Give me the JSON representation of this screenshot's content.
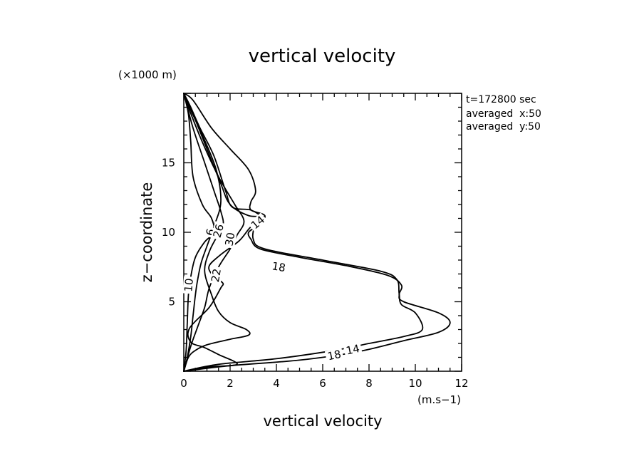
{
  "chart_data": {
    "type": "line",
    "title": "vertical velocity",
    "xlabel": "vertical velocity",
    "x_unit": "(m.s−1)",
    "ylabel": "z−coordinate",
    "y_unit": "(×1000 m)",
    "xlim": [
      0,
      12
    ],
    "ylim": [
      0,
      20
    ],
    "x_ticks": [
      "0",
      "2",
      "4",
      "6",
      "8",
      "10",
      "12"
    ],
    "y_ticks": [
      "5",
      "10",
      "15"
    ],
    "info_lines": [
      "t=172800 sec",
      "averaged  x:50",
      "averaged  y:50"
    ],
    "series": [
      {
        "name": "6",
        "points": [
          [
            0.0,
            0.0
          ],
          [
            0.15,
            1.0
          ],
          [
            0.3,
            2.5
          ],
          [
            0.4,
            4.0
          ],
          [
            0.5,
            5.5
          ],
          [
            0.6,
            6.6
          ],
          [
            0.75,
            7.8
          ],
          [
            1.0,
            9.0
          ],
          [
            1.3,
            10.4
          ],
          [
            1.6,
            12.2
          ],
          [
            1.4,
            14.5
          ],
          [
            0.8,
            17.0
          ],
          [
            0.3,
            18.8
          ],
          [
            0.0,
            20.0
          ]
        ]
      },
      {
        "name": "10",
        "points": [
          [
            0.0,
            0.0
          ],
          [
            0.1,
            1.5
          ],
          [
            0.15,
            3.5
          ],
          [
            0.2,
            5.5
          ],
          [
            0.3,
            6.8
          ],
          [
            0.5,
            8.2
          ],
          [
            0.9,
            9.3
          ],
          [
            1.3,
            10.0
          ],
          [
            1.2,
            11.0
          ],
          [
            0.8,
            12.0
          ],
          [
            0.4,
            14.0
          ],
          [
            0.3,
            16.5
          ],
          [
            0.2,
            18.5
          ],
          [
            0.0,
            20.0
          ]
        ]
      },
      {
        "name": "14",
        "points": [
          [
            0.0,
            0.0
          ],
          [
            1.5,
            0.5
          ],
          [
            4.0,
            0.9
          ],
          [
            6.5,
            1.5
          ],
          [
            8.0,
            2.0
          ],
          [
            9.5,
            2.5
          ],
          [
            10.3,
            3.0
          ],
          [
            10.0,
            4.2
          ],
          [
            9.4,
            4.8
          ],
          [
            9.3,
            5.6
          ],
          [
            9.2,
            6.6
          ],
          [
            8.5,
            7.2
          ],
          [
            6.0,
            8.0
          ],
          [
            3.5,
            8.8
          ],
          [
            3.0,
            9.5
          ],
          [
            3.1,
            10.6
          ],
          [
            3.4,
            11.0
          ],
          [
            2.9,
            11.6
          ],
          [
            2.1,
            11.8
          ],
          [
            1.8,
            13.0
          ],
          [
            1.3,
            15.5
          ],
          [
            0.7,
            17.5
          ],
          [
            0.3,
            19.0
          ],
          [
            0.0,
            20.0
          ]
        ]
      },
      {
        "name": "18",
        "points": [
          [
            0.0,
            0.0
          ],
          [
            2.0,
            0.4
          ],
          [
            5.0,
            0.8
          ],
          [
            7.5,
            1.4
          ],
          [
            9.5,
            2.2
          ],
          [
            11.0,
            2.8
          ],
          [
            11.5,
            3.5
          ],
          [
            11.0,
            4.2
          ],
          [
            9.5,
            5.0
          ],
          [
            9.3,
            5.5
          ],
          [
            9.4,
            6.2
          ],
          [
            8.8,
            6.9
          ],
          [
            7.0,
            7.6
          ],
          [
            5.0,
            8.2
          ],
          [
            3.3,
            8.8
          ],
          [
            2.9,
            9.5
          ],
          [
            2.8,
            10.0
          ],
          [
            3.2,
            10.5
          ],
          [
            3.5,
            11.2
          ],
          [
            2.9,
            11.6
          ],
          [
            2.9,
            12.2
          ],
          [
            3.1,
            13.0
          ],
          [
            2.8,
            14.5
          ],
          [
            2.0,
            16.0
          ],
          [
            1.2,
            17.5
          ],
          [
            0.4,
            19.5
          ],
          [
            0.0,
            20.0
          ]
        ]
      },
      {
        "name": "22",
        "points": [
          [
            0.0,
            0.0
          ],
          [
            1.0,
            0.3
          ],
          [
            2.3,
            0.5
          ],
          [
            1.5,
            1.2
          ],
          [
            0.9,
            1.7
          ],
          [
            0.3,
            2.1
          ],
          [
            0.25,
            3.1
          ],
          [
            1.1,
            4.6
          ],
          [
            1.6,
            6.0
          ],
          [
            1.7,
            6.3
          ],
          [
            1.5,
            6.6
          ],
          [
            1.2,
            7.0
          ],
          [
            1.1,
            7.6
          ],
          [
            1.6,
            8.4
          ],
          [
            2.4,
            9.4
          ],
          [
            2.9,
            10.4
          ],
          [
            3.5,
            11.1
          ],
          [
            2.8,
            11.2
          ],
          [
            2.0,
            12.0
          ],
          [
            1.6,
            13.5
          ],
          [
            1.0,
            16.0
          ],
          [
            0.4,
            18.5
          ],
          [
            0.0,
            20.0
          ]
        ]
      },
      {
        "name": "26",
        "points": [
          [
            0.0,
            0.0
          ],
          [
            0.2,
            1.0
          ],
          [
            0.5,
            1.5
          ],
          [
            1.0,
            1.9
          ],
          [
            2.0,
            2.3
          ],
          [
            2.8,
            2.6
          ],
          [
            2.7,
            3.0
          ],
          [
            2.0,
            3.5
          ],
          [
            1.5,
            4.3
          ],
          [
            1.2,
            5.5
          ],
          [
            0.9,
            7.2
          ],
          [
            1.1,
            8.6
          ],
          [
            1.4,
            9.6
          ],
          [
            1.7,
            10.5
          ],
          [
            1.6,
            11.5
          ],
          [
            1.3,
            13.0
          ],
          [
            0.9,
            15.0
          ],
          [
            0.4,
            17.5
          ],
          [
            0.0,
            20.0
          ]
        ]
      },
      {
        "name": "30",
        "points": [
          [
            0.0,
            0.0
          ],
          [
            0.3,
            1.8
          ],
          [
            0.6,
            3.2
          ],
          [
            0.9,
            4.6
          ],
          [
            1.1,
            6.0
          ],
          [
            1.5,
            7.5
          ],
          [
            2.0,
            8.8
          ],
          [
            2.3,
            9.8
          ],
          [
            2.6,
            10.8
          ],
          [
            2.2,
            12.0
          ],
          [
            1.5,
            14.0
          ],
          [
            0.8,
            16.5
          ],
          [
            0.2,
            19.0
          ],
          [
            0.0,
            20.0
          ]
        ]
      }
    ],
    "contour_labels": [
      {
        "text": "6",
        "x": 1.15,
        "y": 10.0,
        "angle": -75
      },
      {
        "text": "10",
        "x": 0.22,
        "y": 6.2,
        "angle": -85
      },
      {
        "text": "26",
        "x": 1.5,
        "y": 10.1,
        "angle": -75
      },
      {
        "text": "30",
        "x": 2.0,
        "y": 9.5,
        "angle": -80
      },
      {
        "text": "14",
        "x": 3.2,
        "y": 10.7,
        "angle": -40
      },
      {
        "text": "18",
        "x": 4.1,
        "y": 7.5,
        "angle": 10
      },
      {
        "text": "22",
        "x": 1.4,
        "y": 6.9,
        "angle": -80
      },
      {
        "text": "18",
        "x": 6.5,
        "y": 1.15,
        "angle": -12
      },
      {
        "text": "14",
        "x": 7.3,
        "y": 1.55,
        "angle": -12
      }
    ]
  }
}
